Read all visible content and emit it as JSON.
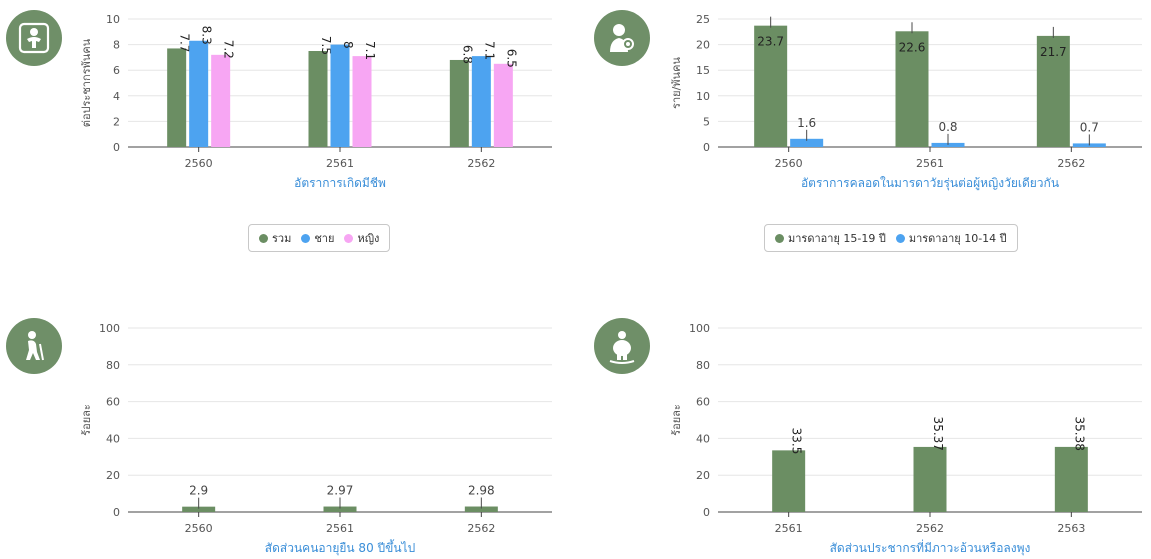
{
  "chart_data": [
    {
      "type": "bar",
      "categories": [
        "2560",
        "2561",
        "2562"
      ],
      "series": [
        {
          "name": "รวม",
          "color": "#6b8e63",
          "values": [
            7.7,
            7.5,
            6.8
          ]
        },
        {
          "name": "ชาย",
          "color": "#4da3f0",
          "values": [
            8.3,
            8.0,
            7.1
          ]
        },
        {
          "name": "หญิง",
          "color": "#f7a6f3",
          "values": [
            7.2,
            7.1,
            6.5
          ]
        }
      ],
      "xlabel": "อัตราการเกิดมีชีพ",
      "ylabel": "ต่อประชากรพันคน",
      "ylim": [
        0,
        10
      ],
      "yticks": [
        0,
        2,
        4,
        6,
        8,
        10
      ],
      "data_labels": "inside-rotated",
      "legend": "bottom",
      "icon": "baby-icon"
    },
    {
      "type": "bar",
      "categories": [
        "2560",
        "2561",
        "2562"
      ],
      "series": [
        {
          "name": "มารดาอายุ 15-19 ปี",
          "color": "#6b8e63",
          "values": [
            23.7,
            22.6,
            21.7
          ]
        },
        {
          "name": "มารดาอายุ 10-14 ปี",
          "color": "#4da3f0",
          "values": [
            1.6,
            0.8,
            0.7
          ]
        }
      ],
      "xlabel": "อัตราการคลอดในมารดาวัยรุ่นต่อผู้หญิงวัยเดียวกัน",
      "ylabel": "ราย/พันคน",
      "ylim": [
        0,
        25
      ],
      "yticks": [
        0,
        5,
        10,
        15,
        20,
        25
      ],
      "data_labels": "inside-top",
      "error_bars": true,
      "legend": "bottom",
      "icon": "mother-baby-icon"
    },
    {
      "type": "bar",
      "categories": [
        "2560",
        "2561",
        "2562"
      ],
      "series": [
        {
          "name": "",
          "color": "#6b8e63",
          "values": [
            2.9,
            2.97,
            2.98
          ]
        }
      ],
      "xlabel": "สัดส่วนคนอายุยืน 80 ปีขึ้นไป",
      "ylabel": "ร้อยละ",
      "ylim": [
        0,
        100
      ],
      "yticks": [
        0,
        20,
        40,
        60,
        80,
        100
      ],
      "data_labels": "above",
      "error_bars": true,
      "icon": "elderly-cane-icon"
    },
    {
      "type": "bar",
      "categories": [
        "2561",
        "2562",
        "2563"
      ],
      "series": [
        {
          "name": "",
          "color": "#6b8e63",
          "values": [
            33.5,
            35.37,
            35.38
          ]
        }
      ],
      "xlabel": "สัดส่วนประชากรที่มีภาวะอ้วนหรือลงพุง",
      "ylabel": "ร้อยละ",
      "ylim": [
        0,
        100
      ],
      "yticks": [
        0,
        20,
        40,
        60,
        80,
        100
      ],
      "data_labels": "inside-rotated",
      "icon": "overweight-person-icon"
    }
  ]
}
